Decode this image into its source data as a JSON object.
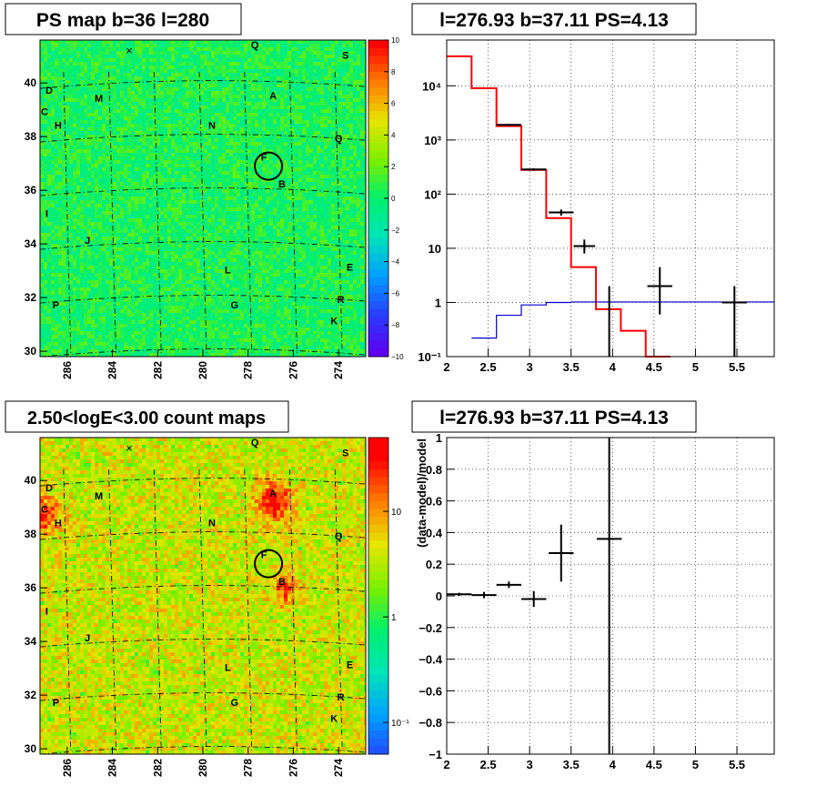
{
  "colors": {
    "frame": "#000000",
    "model_red": "#ff0000",
    "model_blue": "#0000cc",
    "data_black": "#000000",
    "grid": "#000000"
  },
  "chart_data": [
    {
      "id": "ps_map",
      "type": "heatmap",
      "title": "PS map b=36 l=280",
      "x_ticks": [
        "286",
        "284",
        "282",
        "280",
        "278",
        "276",
        "274"
      ],
      "x_tick_values": [
        286,
        284,
        282,
        280,
        278,
        276,
        274
      ],
      "xlim": [
        287.2,
        272.8
      ],
      "y_ticks": [
        "30",
        "32",
        "34",
        "36",
        "38",
        "40"
      ],
      "y_tick_values": [
        30,
        32,
        34,
        36,
        38,
        40
      ],
      "ylim": [
        29.8,
        41.6
      ],
      "colorbar_ticks": [
        "10",
        "8",
        "6",
        "4",
        "2",
        "0",
        "−2",
        "−4",
        "−6",
        "−8",
        "−10"
      ],
      "colorbar_range": [
        -10,
        10
      ],
      "source_labels": [
        {
          "t": "Q",
          "l": 277.7,
          "b": 41.3
        },
        {
          "t": "S",
          "l": 273.7,
          "b": 40.9
        },
        {
          "t": "D",
          "l": 286.8,
          "b": 39.6
        },
        {
          "t": "M",
          "l": 284.6,
          "b": 39.3
        },
        {
          "t": "A",
          "l": 276.9,
          "b": 39.4
        },
        {
          "t": "C",
          "l": 287.0,
          "b": 38.8
        },
        {
          "t": "H",
          "l": 286.4,
          "b": 38.3
        },
        {
          "t": "N",
          "l": 279.6,
          "b": 38.3
        },
        {
          "t": "Q",
          "l": 274.0,
          "b": 37.8
        },
        {
          "t": "F",
          "l": 277.3,
          "b": 37.1
        },
        {
          "t": "B",
          "l": 276.5,
          "b": 36.1
        },
        {
          "t": "I",
          "l": 286.9,
          "b": 35.0
        },
        {
          "t": "J",
          "l": 285.1,
          "b": 34.0
        },
        {
          "t": "L",
          "l": 278.9,
          "b": 32.9
        },
        {
          "t": "E",
          "l": 273.5,
          "b": 33.0
        },
        {
          "t": "P",
          "l": 286.5,
          "b": 31.6
        },
        {
          "t": "G",
          "l": 278.6,
          "b": 31.6
        },
        {
          "t": "R",
          "l": 273.9,
          "b": 31.8
        },
        {
          "t": "K",
          "l": 274.2,
          "b": 31.0
        }
      ],
      "target_circle": {
        "l": 277.1,
        "b": 36.9
      }
    },
    {
      "id": "spectrum",
      "type": "line",
      "title": "l=276.93 b=37.11 PS=4.13",
      "xlim": [
        2.0,
        5.95
      ],
      "x_ticks": [
        "2",
        "2.5",
        "3",
        "3.5",
        "4",
        "4.5",
        "5",
        "5.5"
      ],
      "x_tick_values": [
        2,
        2.5,
        3,
        3.5,
        4,
        4.5,
        5,
        5.5
      ],
      "yscale": "log",
      "ylim": [
        0.1,
        70000
      ],
      "y_ticks": [
        "10⁻¹",
        "1",
        "10",
        "10²",
        "10³",
        "10⁴"
      ],
      "y_tick_values": [
        0.1,
        1,
        10,
        100,
        1000,
        10000
      ],
      "grid": true,
      "series": [
        {
          "color": "#ff0000",
          "edges": [
            2.0,
            2.3,
            2.6,
            2.9,
            3.2,
            3.5,
            3.8,
            4.1,
            4.4,
            4.7
          ],
          "values": [
            35000,
            9000,
            1800,
            280,
            36,
            4.5,
            0.75,
            0.3,
            0.1
          ]
        },
        {
          "color": "#0000cc",
          "edges": [
            2.3,
            2.6,
            2.9,
            3.2,
            3.5,
            3.8,
            4.1,
            4.4,
            4.7,
            5.0,
            5.95
          ],
          "values": [
            0.22,
            0.58,
            0.9,
            1.0,
            1.02,
            1.02,
            1.02,
            1.02,
            1.02,
            1.02
          ]
        }
      ],
      "data_points": [
        {
          "x": 2.75,
          "xerr": 0.15,
          "y": 1900,
          "ylo": 1820,
          "yhi": 1980
        },
        {
          "x": 3.05,
          "xerr": 0.15,
          "y": 285,
          "ylo": 270,
          "yhi": 300
        },
        {
          "x": 3.38,
          "xerr": 0.15,
          "y": 46,
          "ylo": 40,
          "yhi": 52
        },
        {
          "x": 3.66,
          "xerr": 0.13,
          "y": 11,
          "ylo": 8,
          "yhi": 14.5
        },
        {
          "x": 3.96,
          "xerr": 0.0,
          "y": 0.1,
          "ylo": 0.1,
          "yhi": 2.0
        },
        {
          "x": 4.57,
          "xerr": 0.15,
          "y": 2.0,
          "ylo": 0.6,
          "yhi": 4.5
        },
        {
          "x": 5.47,
          "xerr": 0.15,
          "y": 1.0,
          "ylo": 0.1,
          "yhi": 2.0
        }
      ]
    },
    {
      "id": "count_map",
      "type": "heatmap",
      "title": "2.50<logE<3.00 count maps",
      "x_ticks": [
        "286",
        "284",
        "282",
        "280",
        "278",
        "276",
        "274"
      ],
      "x_tick_values": [
        286,
        284,
        282,
        280,
        278,
        276,
        274
      ],
      "xlim": [
        287.2,
        272.8
      ],
      "y_ticks": [
        "30",
        "32",
        "34",
        "36",
        "38",
        "40"
      ],
      "y_tick_values": [
        30,
        32,
        34,
        36,
        38,
        40
      ],
      "ylim": [
        29.8,
        41.6
      ],
      "colorbar_scale": "log",
      "colorbar_range": [
        0.05,
        50
      ],
      "colorbar_ticks": [
        "10",
        "1",
        "10⁻¹"
      ],
      "colorbar_tick_values": [
        10,
        1,
        0.1
      ],
      "hotspots": [
        {
          "l": 276.9,
          "b": 39.3,
          "amp": 1.0,
          "r": 0.9
        },
        {
          "l": 276.4,
          "b": 36.0,
          "amp": 0.7,
          "r": 0.7
        },
        {
          "l": 287.1,
          "b": 38.8,
          "amp": 0.8,
          "r": 0.9
        }
      ],
      "source_labels": [
        {
          "t": "Q",
          "l": 277.7,
          "b": 41.3
        },
        {
          "t": "S",
          "l": 273.7,
          "b": 40.9
        },
        {
          "t": "D",
          "l": 286.8,
          "b": 39.6
        },
        {
          "t": "M",
          "l": 284.6,
          "b": 39.3
        },
        {
          "t": "A",
          "l": 276.9,
          "b": 39.4
        },
        {
          "t": "C",
          "l": 287.0,
          "b": 38.8
        },
        {
          "t": "H",
          "l": 286.4,
          "b": 38.3
        },
        {
          "t": "N",
          "l": 279.6,
          "b": 38.3
        },
        {
          "t": "Q",
          "l": 274.0,
          "b": 37.8
        },
        {
          "t": "F",
          "l": 277.3,
          "b": 37.1
        },
        {
          "t": "B",
          "l": 276.5,
          "b": 36.1
        },
        {
          "t": "I",
          "l": 286.9,
          "b": 35.0
        },
        {
          "t": "J",
          "l": 285.1,
          "b": 34.0
        },
        {
          "t": "L",
          "l": 278.9,
          "b": 32.9
        },
        {
          "t": "E",
          "l": 273.5,
          "b": 33.0
        },
        {
          "t": "P",
          "l": 286.5,
          "b": 31.6
        },
        {
          "t": "G",
          "l": 278.6,
          "b": 31.6
        },
        {
          "t": "R",
          "l": 273.9,
          "b": 31.8
        },
        {
          "t": "K",
          "l": 274.2,
          "b": 31.0
        }
      ],
      "target_circle": {
        "l": 277.1,
        "b": 36.9
      }
    },
    {
      "id": "residuals",
      "type": "scatter",
      "title": "l=276.93 b=37.11 PS=4.13",
      "ylabel": "(data-model)/model",
      "xlim": [
        2.0,
        5.95
      ],
      "x_ticks": [
        "2",
        "2.5",
        "3",
        "3.5",
        "4",
        "4.5",
        "5",
        "5.5"
      ],
      "x_tick_values": [
        2,
        2.5,
        3,
        3.5,
        4,
        4.5,
        5,
        5.5
      ],
      "ylim": [
        -1,
        1
      ],
      "y_ticks": [
        "1",
        "0.8",
        "0.6",
        "0.4",
        "0.2",
        "0",
        "−0.2",
        "−0.4",
        "−0.6",
        "−0.8",
        "−1"
      ],
      "y_tick_values": [
        1,
        0.8,
        0.6,
        0.4,
        0.2,
        0,
        -0.2,
        -0.4,
        -0.6,
        -0.8,
        -1
      ],
      "grid": true,
      "data_points": [
        {
          "x": 2.15,
          "xerr": 0.15,
          "y": 0.01,
          "err": 0.01
        },
        {
          "x": 2.45,
          "xerr": 0.15,
          "y": 0.005,
          "err": 0.02
        },
        {
          "x": 2.75,
          "xerr": 0.15,
          "y": 0.07,
          "err": 0.02
        },
        {
          "x": 3.05,
          "xerr": 0.15,
          "y": -0.02,
          "err": 0.05
        },
        {
          "x": 3.38,
          "xerr": 0.15,
          "y": 0.27,
          "err": 0.18
        },
        {
          "x": 3.96,
          "xerr": 0.15,
          "y": 0.36,
          "err": 1.5
        }
      ]
    }
  ]
}
